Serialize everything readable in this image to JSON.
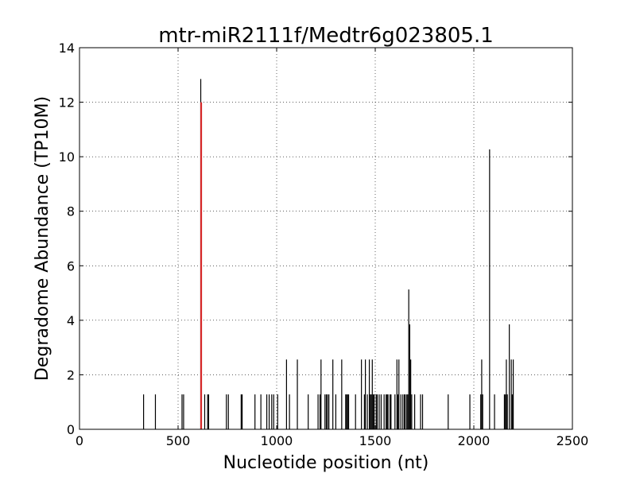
{
  "chart_data": {
    "type": "bar",
    "title": "mtr-miR2111f/Medtr6g023805.1",
    "xlabel": "Nucleotide position (nt)",
    "ylabel": "Degradome Abundance (TP10M)",
    "xlim": [
      0,
      2500
    ],
    "ylim": [
      0,
      14
    ],
    "xticks": [
      0,
      500,
      1000,
      1500,
      2000,
      2500
    ],
    "yticks": [
      0,
      2,
      4,
      6,
      8,
      10,
      12,
      14
    ],
    "grid": true,
    "colors": {
      "series": "#000000",
      "target": "#d62728"
    },
    "series": [
      {
        "name": "",
        "x": [
          325,
          385,
          520,
          528,
          615,
          635,
          650,
          655,
          745,
          755,
          820,
          825,
          890,
          920,
          950,
          962,
          975,
          985,
          1005,
          1050,
          1065,
          1105,
          1160,
          1210,
          1220,
          1225,
          1245,
          1252,
          1258,
          1265,
          1285,
          1300,
          1330,
          1350,
          1355,
          1360,
          1365,
          1400,
          1430,
          1445,
          1450,
          1460,
          1470,
          1475,
          1480,
          1485,
          1490,
          1495,
          1505,
          1510,
          1520,
          1530,
          1545,
          1555,
          1560,
          1565,
          1575,
          1580,
          1600,
          1610,
          1615,
          1620,
          1630,
          1640,
          1648,
          1652,
          1660,
          1665,
          1670,
          1675,
          1680,
          1685,
          1700,
          1730,
          1740,
          1870,
          1980,
          2035,
          2040,
          2045,
          2080,
          2105,
          2155,
          2160,
          2165,
          2170,
          2180,
          2190,
          2195,
          2200
        ],
        "values": [
          1.28,
          1.28,
          1.28,
          1.28,
          12.85,
          1.28,
          1.28,
          1.28,
          1.28,
          1.28,
          1.28,
          1.28,
          1.28,
          1.28,
          1.28,
          1.28,
          1.28,
          1.28,
          1.28,
          2.56,
          1.28,
          2.56,
          1.28,
          1.28,
          1.28,
          2.56,
          1.28,
          1.28,
          1.28,
          1.28,
          2.56,
          1.28,
          2.56,
          1.28,
          1.28,
          1.28,
          1.28,
          1.28,
          2.56,
          1.28,
          2.56,
          1.28,
          2.56,
          1.28,
          1.28,
          2.56,
          1.28,
          1.28,
          1.28,
          1.28,
          1.28,
          1.28,
          1.28,
          1.28,
          1.28,
          1.28,
          1.28,
          1.28,
          1.28,
          2.56,
          1.28,
          2.56,
          1.28,
          1.28,
          1.28,
          1.28,
          1.28,
          1.28,
          5.13,
          3.85,
          2.56,
          1.28,
          1.28,
          1.28,
          1.28,
          1.28,
          1.28,
          1.28,
          2.56,
          1.28,
          10.27,
          1.28,
          1.28,
          1.28,
          2.56,
          1.28,
          3.85,
          2.56,
          1.28,
          2.56
        ]
      }
    ],
    "target_line": {
      "x": 617,
      "value": 12.0
    }
  }
}
